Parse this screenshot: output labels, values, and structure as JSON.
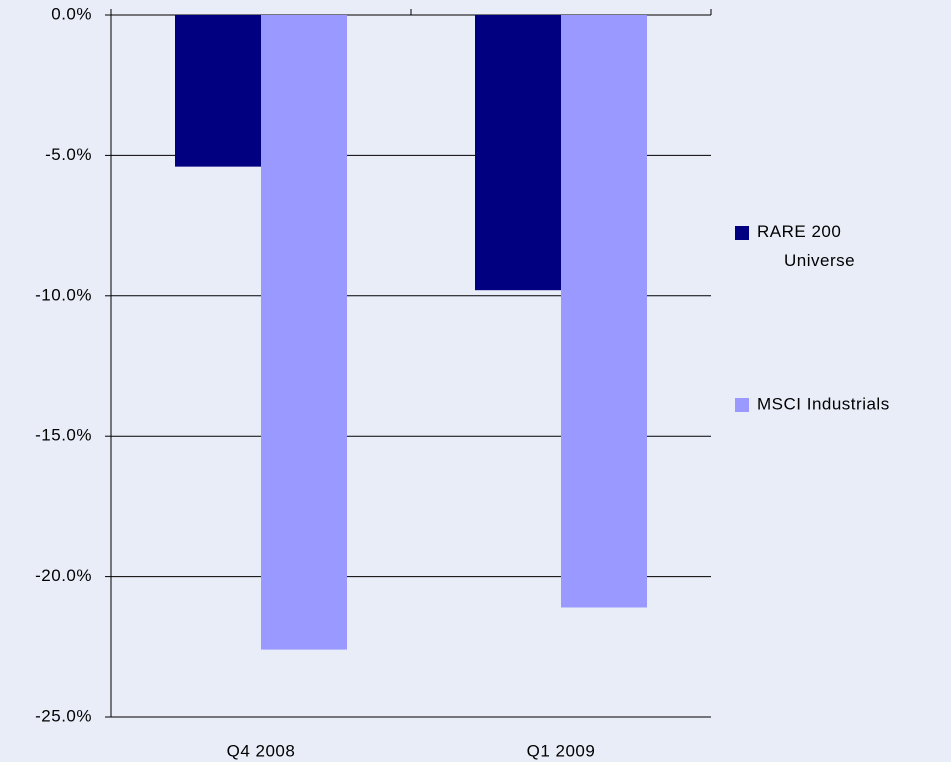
{
  "chart_data": {
    "type": "bar",
    "categories": [
      "Q4 2008",
      "Q1 2009"
    ],
    "series": [
      {
        "name": "RARE 200 Universe",
        "color": "#000080",
        "values": [
          -5.4,
          -9.8
        ]
      },
      {
        "name": "MSCI Industrials",
        "color": "#9999ff",
        "values": [
          -22.6,
          -21.1
        ]
      }
    ],
    "ylim": [
      -25,
      0
    ],
    "yticks": [
      {
        "value": 0,
        "label": "0.0%"
      },
      {
        "value": -5,
        "label": "-5.0%"
      },
      {
        "value": -10,
        "label": "-10.0%"
      },
      {
        "value": -15,
        "label": "-15.0%"
      },
      {
        "value": -20,
        "label": "-20.0%"
      },
      {
        "value": -25,
        "label": "-25.0%"
      }
    ],
    "grid": true,
    "legend": "right"
  }
}
